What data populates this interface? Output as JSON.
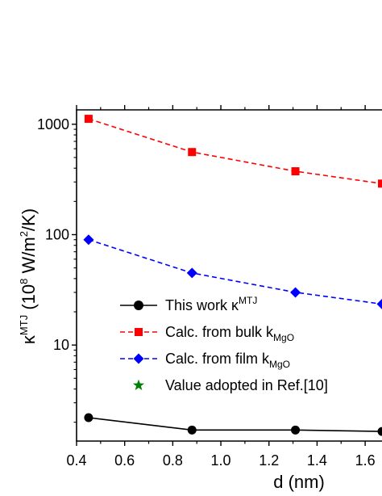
{
  "chart_data": {
    "type": "line",
    "xlabel": "d (nm)",
    "ylabel": {
      "prefix": "κ",
      "sup1": "MTJ",
      "middle": " (10",
      "sup2": "8",
      "units_a": " W/m",
      "sup3": "2",
      "units_b": "/K)"
    },
    "xlim": [
      0.4,
      1.67
    ],
    "ylim": [
      1.35,
      1350
    ],
    "yscale": "log",
    "x_ticks": [
      0.4,
      0.6,
      0.8,
      1.0,
      1.2,
      1.4,
      1.6
    ],
    "x_tick_labels": [
      "0.4",
      "0.6",
      "0.8",
      "1.0",
      "1.2",
      "1.4",
      "1.6"
    ],
    "y_ticks": [
      10,
      100,
      1000
    ],
    "y_tick_labels": [
      "10",
      "100",
      "1000"
    ],
    "grid": false,
    "legend_position": "lower-left",
    "series": [
      {
        "key": "this_work",
        "name": "This work κ",
        "name_sup": "MTJ",
        "color": "#000000",
        "marker": "circle",
        "linestyle": "solid",
        "x": [
          0.45,
          0.88,
          1.31,
          1.67
        ],
        "y": [
          2.2,
          1.7,
          1.7,
          1.65
        ]
      },
      {
        "key": "bulk",
        "name": "Calc. from bulk k",
        "name_sub": "MgO",
        "color": "#ff0000",
        "marker": "square",
        "linestyle": "dashed",
        "x": [
          0.45,
          0.88,
          1.31,
          1.67
        ],
        "y": [
          1120,
          560,
          375,
          290
        ]
      },
      {
        "key": "film",
        "name": "Calc. from film k",
        "name_sub": "MgO",
        "color": "#0000ff",
        "marker": "diamond",
        "linestyle": "dashed",
        "x": [
          0.45,
          0.88,
          1.31,
          1.67
        ],
        "y": [
          90,
          45,
          30,
          23.5
        ]
      },
      {
        "key": "ref10",
        "name": "Value adopted in Ref.[10]",
        "color": "#008000",
        "marker": "star",
        "linestyle": "none",
        "x": [],
        "y": []
      }
    ]
  }
}
